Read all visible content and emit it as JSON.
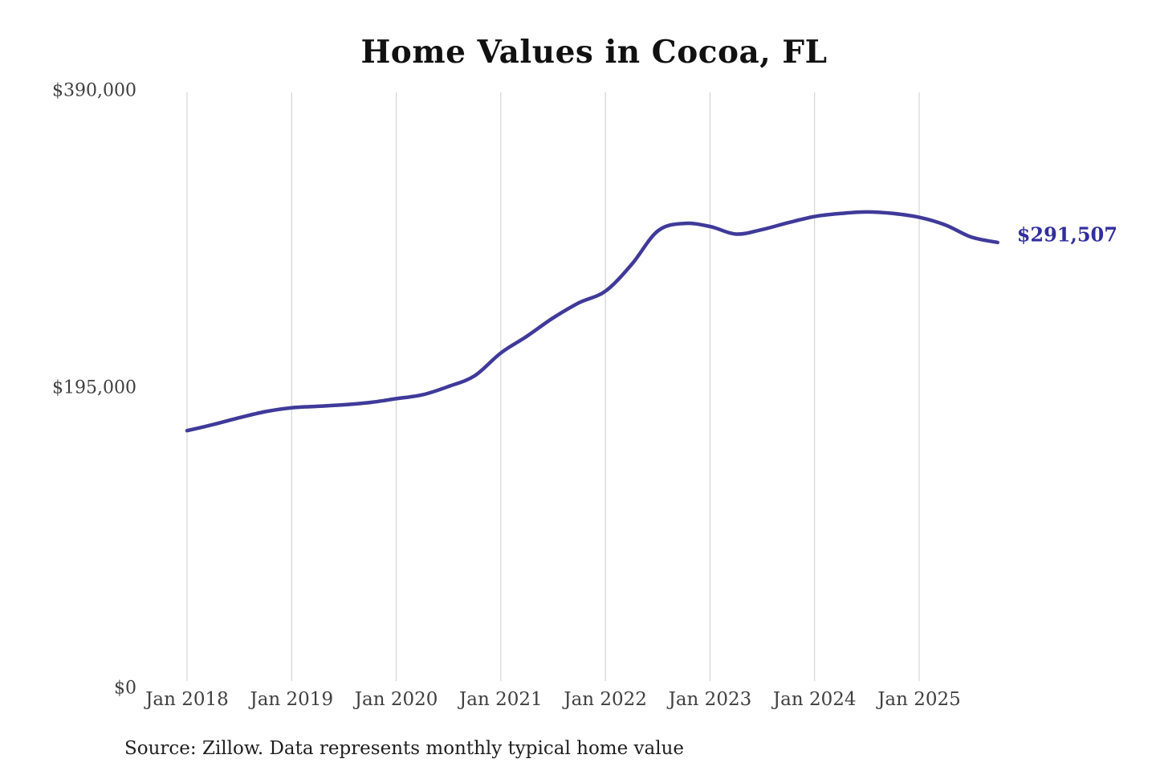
{
  "title": "Home Values in Cocoa, FL",
  "source": "Source: Zillow. Data represents monthly typical home value",
  "colors": {
    "background": "#ffffff",
    "line": "#3f3a99",
    "end_label": "#322e9e",
    "gridline": "#cccccc",
    "axis_label": "#404040",
    "title": "#111111",
    "source": "#1f1f1f"
  },
  "chart_data": {
    "type": "line",
    "title": "Home Values in Cocoa, FL",
    "ylabel": "",
    "xlabel": "",
    "ylim": [
      0,
      390000
    ],
    "grid": "vertical-only",
    "legend": "none",
    "end_label": "$291,507",
    "end_value": 291507,
    "y_ticks": [
      {
        "value": 390000,
        "label": "$390,000"
      },
      {
        "value": 195000,
        "label": "$195,000"
      },
      {
        "value": 0,
        "label": "$0"
      }
    ],
    "x_ticks": [
      {
        "year": 2018,
        "label": "Jan 2018"
      },
      {
        "year": 2019,
        "label": "Jan 2019"
      },
      {
        "year": 2020,
        "label": "Jan 2020"
      },
      {
        "year": 2021,
        "label": "Jan 2021"
      },
      {
        "year": 2022,
        "label": "Jan 2022"
      },
      {
        "year": 2023,
        "label": "Jan 2023"
      },
      {
        "year": 2024,
        "label": "Jan 2024"
      },
      {
        "year": 2025,
        "label": "Jan 2025"
      }
    ],
    "series": [
      {
        "name": "Typical home value",
        "points": [
          {
            "month": "2018-01",
            "value": 168000
          },
          {
            "month": "2018-04",
            "value": 172000
          },
          {
            "month": "2018-07",
            "value": 176500
          },
          {
            "month": "2018-10",
            "value": 180500
          },
          {
            "month": "2019-01",
            "value": 183000
          },
          {
            "month": "2019-04",
            "value": 184000
          },
          {
            "month": "2019-07",
            "value": 185000
          },
          {
            "month": "2019-10",
            "value": 186500
          },
          {
            "month": "2020-01",
            "value": 189000
          },
          {
            "month": "2020-04",
            "value": 191500
          },
          {
            "month": "2020-07",
            "value": 197000
          },
          {
            "month": "2020-10",
            "value": 204000
          },
          {
            "month": "2021-01",
            "value": 219000
          },
          {
            "month": "2021-04",
            "value": 230000
          },
          {
            "month": "2021-07",
            "value": 242000
          },
          {
            "month": "2021-10",
            "value": 252000
          },
          {
            "month": "2022-01",
            "value": 259500
          },
          {
            "month": "2022-04",
            "value": 277000
          },
          {
            "month": "2022-07",
            "value": 299000
          },
          {
            "month": "2022-10",
            "value": 304000
          },
          {
            "month": "2023-01",
            "value": 302000
          },
          {
            "month": "2023-04",
            "value": 297000
          },
          {
            "month": "2023-07",
            "value": 300000
          },
          {
            "month": "2023-10",
            "value": 304500
          },
          {
            "month": "2024-01",
            "value": 308500
          },
          {
            "month": "2024-04",
            "value": 310500
          },
          {
            "month": "2024-07",
            "value": 311500
          },
          {
            "month": "2024-10",
            "value": 310500
          },
          {
            "month": "2025-01",
            "value": 308000
          },
          {
            "month": "2025-04",
            "value": 303000
          },
          {
            "month": "2025-07",
            "value": 295000
          },
          {
            "month": "2025-10",
            "value": 291507
          }
        ]
      }
    ]
  }
}
